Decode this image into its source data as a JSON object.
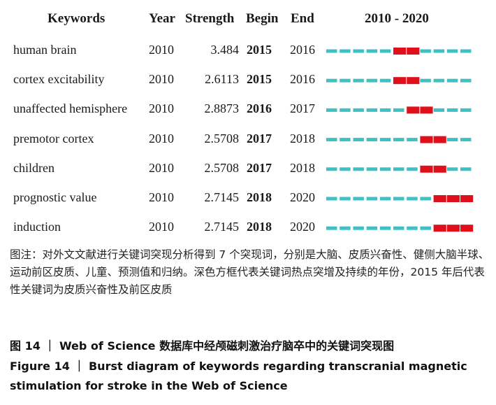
{
  "chart_data": {
    "type": "table",
    "headers": {
      "keywords": "Keywords",
      "year": "Year",
      "strength": "Strength",
      "begin": "Begin",
      "end": "End",
      "range": "2010 - 2020"
    },
    "timeline": {
      "start": 2010,
      "end": 2020
    },
    "colors": {
      "burst": "#e0101a",
      "base": "#3fc1c4"
    },
    "rows": [
      {
        "keyword": "human brain",
        "year": "2010",
        "strength": "3.484",
        "begin": "2015",
        "end": "2016"
      },
      {
        "keyword": "cortex excitability",
        "year": "2010",
        "strength": "2.6113",
        "begin": "2015",
        "end": "2016"
      },
      {
        "keyword": "unaffected hemisphere",
        "year": "2010",
        "strength": "2.8873",
        "begin": "2016",
        "end": "2017"
      },
      {
        "keyword": "premotor cortex",
        "year": "2010",
        "strength": "2.5708",
        "begin": "2017",
        "end": "2018"
      },
      {
        "keyword": "children",
        "year": "2010",
        "strength": "2.5708",
        "begin": "2017",
        "end": "2018"
      },
      {
        "keyword": "prognostic value",
        "year": "2010",
        "strength": "2.7145",
        "begin": "2018",
        "end": "2020"
      },
      {
        "keyword": "induction",
        "year": "2010",
        "strength": "2.7145",
        "begin": "2018",
        "end": "2020"
      }
    ]
  },
  "caption": {
    "note": "图注：对外文文献进行关键词突现分析得到 7 个突现词，分别是大脑、皮质兴奋性、健侧大脑半球、运动前区皮质、儿童、预测值和归纳。深色方框代表关键词热点突增及持续的年份，2015 年后代表性关键词为皮质兴奋性及前区皮质",
    "figure_cn": "图 14 ｜ Web of Science 数据库中经颅磁刺激治疗脑卒中的关键词突现图",
    "figure_en": "Figure 14 ｜ Burst diagram of keywords regarding transcranial magnetic stimulation for stroke in the Web of Science"
  }
}
